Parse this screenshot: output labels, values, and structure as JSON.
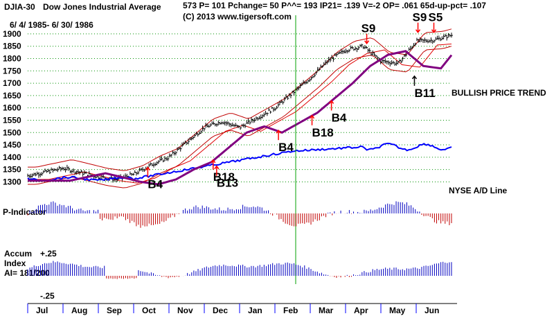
{
  "header": {
    "index_label": "DJIA-30",
    "index_name": "Dow Jones Industrial Average",
    "stats": "573 P=  101 Pchange=  50 P^^= 193 IP21= .139 V=-2 OP= .061 65d-up-pct= .107",
    "copyright": "(C) 2013 www.tigersoft.com",
    "date_range": "6/ 4/ 1985- 6/ 30/ 1986"
  },
  "labels": {
    "bullish": "BULLISH PRICE TREND",
    "nyse_ad": "NYSE A/D Line",
    "p_indicator": "P-Indicator",
    "accum_line1": "Accum",
    "accum_line2": "Index",
    "accum_line3": "AI= 181/200",
    "accum_top": "+.25",
    "accum_bottom": "-.25"
  },
  "colors": {
    "price_bars": "#000000",
    "upper_band": "#c00000",
    "mid_band": "#e00000",
    "ma_purple": "#800080",
    "ad_line": "#0000ff",
    "p_pos": "#0000c0",
    "p_neg": "#c00000",
    "grid": "#009000",
    "marker_line": "#00a000",
    "signal_red": "#ff0000",
    "signal_black": "#000000"
  },
  "chart_data": {
    "type": "line",
    "title": "DJIA-30 Dow Jones Industrial Average",
    "y_ticks": [
      1900,
      1850,
      1800,
      1750,
      1700,
      1650,
      1600,
      1550,
      1500,
      1450,
      1400,
      1350,
      1300
    ],
    "ylim": [
      1290,
      1925
    ],
    "months": [
      "Jul",
      "Aug",
      "Sep",
      "Oct",
      "Nov",
      "Dec",
      "Jan",
      "Feb",
      "Mar",
      "Apr",
      "May",
      "Jun"
    ],
    "price_series": [
      {
        "t": 0,
        "v": 1325
      },
      {
        "t": 0.5,
        "v": 1340
      },
      {
        "t": 1,
        "v": 1355
      },
      {
        "t": 1.5,
        "v": 1338
      },
      {
        "t": 2,
        "v": 1320
      },
      {
        "t": 2.5,
        "v": 1310
      },
      {
        "t": 3,
        "v": 1330
      },
      {
        "t": 3.5,
        "v": 1370
      },
      {
        "t": 4,
        "v": 1400
      },
      {
        "t": 4.5,
        "v": 1460
      },
      {
        "t": 5,
        "v": 1520
      },
      {
        "t": 5.5,
        "v": 1545
      },
      {
        "t": 6,
        "v": 1520
      },
      {
        "t": 6.5,
        "v": 1560
      },
      {
        "t": 7,
        "v": 1600
      },
      {
        "t": 7.5,
        "v": 1660
      },
      {
        "t": 8,
        "v": 1720
      },
      {
        "t": 8.5,
        "v": 1790
      },
      {
        "t": 9,
        "v": 1835
      },
      {
        "t": 9.5,
        "v": 1850
      },
      {
        "t": 10,
        "v": 1790
      },
      {
        "t": 10.5,
        "v": 1780
      },
      {
        "t": 11,
        "v": 1870
      },
      {
        "t": 11.5,
        "v": 1875
      },
      {
        "t": 12,
        "v": 1895
      }
    ],
    "signals": [
      {
        "label": "S9",
        "t": 9.6,
        "v": 1850,
        "color": "red",
        "dir": "down"
      },
      {
        "label": "S9",
        "t": 11.05,
        "v": 1895,
        "color": "red",
        "dir": "down"
      },
      {
        "label": "S5",
        "t": 11.5,
        "v": 1895,
        "color": "red",
        "dir": "down"
      },
      {
        "label": "B11",
        "t": 10.95,
        "v": 1740,
        "color": "black",
        "dir": "up"
      },
      {
        "label": "B4",
        "t": 8.6,
        "v": 1640,
        "color": "red",
        "dir": "up"
      },
      {
        "label": "B18",
        "t": 8.05,
        "v": 1580,
        "color": "red",
        "dir": "up"
      },
      {
        "label": "B4",
        "t": 7.1,
        "v": 1520,
        "color": "red",
        "dir": "up"
      },
      {
        "label": "B18",
        "t": 5.25,
        "v": 1400,
        "color": "red",
        "dir": "up"
      },
      {
        "label": "B13",
        "t": 5.35,
        "v": 1375,
        "color": "red",
        "dir": "up"
      },
      {
        "label": "B4",
        "t": 3.4,
        "v": 1370,
        "color": "red",
        "dir": "up"
      }
    ],
    "vertical_marker": {
      "t": 7.05,
      "label": "Feb"
    }
  }
}
